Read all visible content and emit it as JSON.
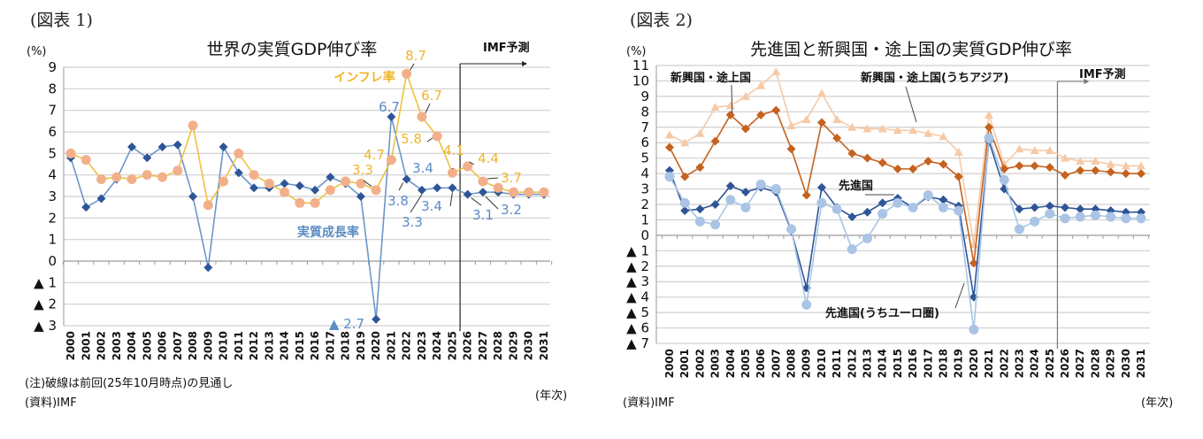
{
  "figure1": {
    "label": "(図表 1)",
    "note": "(注)破線は前回(25年10月時点)の見通し",
    "source": "(資料)IMF",
    "xunit": "(年次)",
    "forecast_label": "IMF予測"
  },
  "figure2": {
    "label": "(図表 2)",
    "source": "(資料)IMF",
    "xunit": "(年次)",
    "forecast_label": "IMF予測"
  },
  "chart_data": [
    {
      "type": "line",
      "title": "世界の実質GDP伸び率",
      "ylabel": "(%)",
      "xlabel": "(年次)",
      "ylim": [
        -3,
        9
      ],
      "yticks": [
        9,
        8,
        7,
        6,
        5,
        4,
        3,
        2,
        1,
        0,
        -1,
        -2,
        -3
      ],
      "ytick_labels": [
        "9",
        "8",
        "7",
        "6",
        "5",
        "4",
        "3",
        "2",
        "1",
        "0",
        "▲ 1",
        "▲ 2",
        "▲ 3"
      ],
      "grid": true,
      "forecast_start": "2026",
      "x": [
        "2000",
        "2001",
        "2002",
        "2003",
        "2004",
        "2005",
        "2006",
        "2007",
        "2008",
        "2009",
        "2010",
        "2011",
        "2012",
        "2013",
        "2014",
        "2015",
        "2016",
        "2017",
        "2018",
        "2019",
        "2020",
        "2021",
        "2022",
        "2023",
        "2024",
        "2025",
        "2026",
        "2027",
        "2028",
        "2029",
        "2030",
        "2031"
      ],
      "series": [
        {
          "name": "実質成長率",
          "color": "#2e5597",
          "line_color": "#6c96c8",
          "label_color": "#5b8cc4",
          "marker": "diamond",
          "values": [
            4.8,
            2.5,
            2.9,
            3.8,
            5.3,
            4.8,
            5.3,
            5.4,
            3.0,
            -0.3,
            5.3,
            4.1,
            3.4,
            3.4,
            3.6,
            3.5,
            3.3,
            3.9,
            3.6,
            3.0,
            -2.7,
            6.7,
            3.8,
            3.3,
            3.4,
            3.4,
            3.1,
            3.2,
            3.2,
            3.1,
            3.1,
            3.1
          ]
        },
        {
          "name": "インフレ率",
          "color": "#f2b08a",
          "line_color": "#f0c040",
          "label_color": "#f0b429",
          "marker": "circle",
          "values": [
            5.0,
            4.7,
            3.8,
            3.9,
            3.8,
            4.0,
            3.9,
            4.2,
            6.3,
            2.6,
            3.7,
            5.0,
            4.0,
            3.6,
            3.2,
            2.7,
            2.7,
            3.3,
            3.7,
            3.6,
            3.3,
            4.7,
            8.7,
            6.7,
            5.8,
            4.1,
            4.4,
            3.7,
            3.4,
            3.2,
            3.2,
            3.2
          ]
        }
      ],
      "annotations": [
        {
          "series": "インフレ率",
          "x": "2022",
          "text": "8.7"
        },
        {
          "series": "インフレ率",
          "x": "2023",
          "text": "6.7"
        },
        {
          "series": "インフレ率",
          "x": "2024",
          "text": "5.8"
        },
        {
          "series": "インフレ率",
          "x": "2021",
          "text": "4.7"
        },
        {
          "series": "インフレ率",
          "x": "2025",
          "text": "4.1"
        },
        {
          "series": "インフレ率",
          "x": "2026",
          "text": "4.4"
        },
        {
          "series": "インフレ率",
          "x": "2027",
          "text": "3.7"
        },
        {
          "series": "インフレ率",
          "x": "2020",
          "text": "3.3"
        },
        {
          "series": "実質成長率",
          "x": "2021",
          "text": "6.7"
        },
        {
          "series": "実質成長率",
          "x": "2022",
          "text": "3.8"
        },
        {
          "series": "実質成長率",
          "x": "2023",
          "text": "3.3"
        },
        {
          "series": "実質成長率",
          "x": "2024",
          "text": "3.4"
        },
        {
          "series": "実質成長率",
          "x": "2025",
          "text": "3.4"
        },
        {
          "series": "実質成長率",
          "x": "2026",
          "text": "3.1"
        },
        {
          "series": "実質成長率",
          "x": "2027",
          "text": "3.2"
        },
        {
          "series": "実質成長率",
          "x": "2020",
          "text": "▲ 2.7"
        }
      ],
      "series_labels": {
        "growth": "実質成長率",
        "inflation": "インフレ率"
      }
    },
    {
      "type": "line",
      "title": "先進国と新興国・途上国の実質GDP伸び率",
      "ylabel": "(%)",
      "xlabel": "(年次)",
      "ylim": [
        -7,
        11
      ],
      "yticks": [
        11,
        10,
        9,
        8,
        7,
        6,
        5,
        4,
        3,
        2,
        1,
        0,
        -1,
        -2,
        -3,
        -4,
        -5,
        -6,
        -7
      ],
      "ytick_labels": [
        "11",
        "10",
        "9",
        "8",
        "7",
        "6",
        "5",
        "4",
        "3",
        "2",
        "1",
        "0",
        "▲ 1",
        "▲ 2",
        "▲ 3",
        "▲ 4",
        "▲ 5",
        "▲ 6",
        "▲ 7"
      ],
      "grid": true,
      "forecast_start": "2026",
      "x": [
        "2000",
        "2001",
        "2002",
        "2003",
        "2004",
        "2005",
        "2006",
        "2007",
        "2008",
        "2009",
        "2010",
        "2011",
        "2012",
        "2013",
        "2014",
        "2015",
        "2016",
        "2017",
        "2018",
        "2019",
        "2020",
        "2021",
        "2022",
        "2023",
        "2024",
        "2025",
        "2026",
        "2027",
        "2028",
        "2029",
        "2030",
        "2031"
      ],
      "series": [
        {
          "name": "新興国・途上国(うちアジア)",
          "color": "#f6c9a6",
          "marker": "triangle",
          "values": [
            6.5,
            6.0,
            6.6,
            8.3,
            8.4,
            9.0,
            9.7,
            10.6,
            7.1,
            7.5,
            9.2,
            7.5,
            7.0,
            6.9,
            6.9,
            6.8,
            6.8,
            6.6,
            6.4,
            5.4,
            -0.6,
            7.8,
            4.6,
            5.6,
            5.5,
            5.5,
            5.0,
            4.8,
            4.8,
            4.6,
            4.5,
            4.5
          ]
        },
        {
          "name": "新興国・途上国",
          "color": "#c5621e",
          "marker": "diamond",
          "values": [
            5.7,
            3.8,
            4.4,
            6.1,
            7.8,
            6.9,
            7.8,
            8.1,
            5.6,
            2.6,
            7.3,
            6.3,
            5.3,
            5.0,
            4.7,
            4.3,
            4.3,
            4.8,
            4.6,
            3.8,
            -1.8,
            7.0,
            4.3,
            4.5,
            4.5,
            4.4,
            3.9,
            4.2,
            4.2,
            4.1,
            4.0,
            4.0
          ]
        },
        {
          "name": "先進国",
          "color": "#2e5597",
          "marker": "diamond",
          "values": [
            4.2,
            1.6,
            1.7,
            2.0,
            3.2,
            2.8,
            3.1,
            2.8,
            0.3,
            -3.4,
            3.1,
            1.8,
            1.2,
            1.5,
            2.1,
            2.4,
            1.8,
            2.5,
            2.3,
            1.9,
            -4.0,
            6.1,
            3.0,
            1.7,
            1.8,
            1.9,
            1.8,
            1.7,
            1.7,
            1.6,
            1.5,
            1.5
          ]
        },
        {
          "name": "先進国(うちユーロ圏)",
          "color": "#a9c4e4",
          "marker": "circle",
          "values": [
            3.8,
            2.1,
            0.9,
            0.7,
            2.3,
            1.8,
            3.3,
            3.0,
            0.4,
            -4.5,
            2.1,
            1.7,
            -0.9,
            -0.2,
            1.4,
            2.1,
            1.8,
            2.6,
            1.8,
            1.6,
            -6.1,
            6.3,
            3.6,
            0.4,
            0.9,
            1.4,
            1.1,
            1.2,
            1.3,
            1.2,
            1.1,
            1.1
          ]
        }
      ]
    }
  ]
}
